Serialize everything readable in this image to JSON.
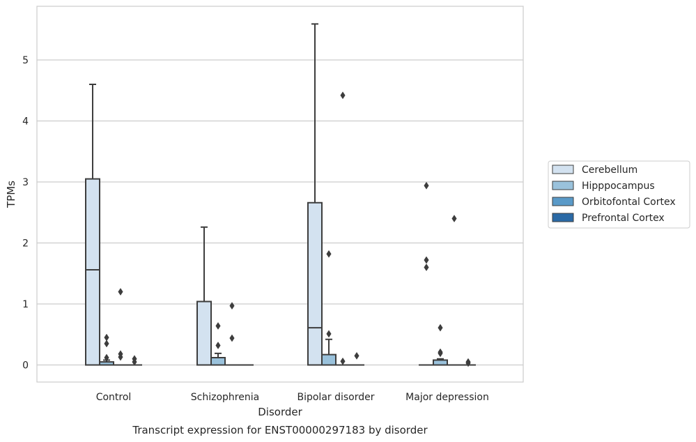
{
  "chart_data": {
    "type": "box",
    "xlabel": "Disorder",
    "ylabel": "TPMs",
    "caption": "Transcript expression for ENST00000297183 by disorder",
    "categories": [
      "Control",
      "Schizophrenia",
      "Bipolar disorder",
      "Major depression"
    ],
    "ylim": [
      -0.28,
      5.88
    ],
    "yticks": [
      0,
      1,
      2,
      3,
      4,
      5
    ],
    "grid": true,
    "legend_position": "right",
    "series": [
      {
        "name": "Cerebellum",
        "color": "#d3e2f0",
        "boxes": [
          {
            "min": 0,
            "q1": 0,
            "median": 1.56,
            "q3": 3.05,
            "max": 4.6,
            "outliers": []
          },
          {
            "min": 0,
            "q1": 0,
            "median": 0,
            "q3": 1.04,
            "max": 2.26,
            "outliers": []
          },
          {
            "min": 0,
            "q1": 0,
            "median": 0.61,
            "q3": 2.66,
            "max": 5.59,
            "outliers": []
          },
          {
            "min": 0,
            "q1": 0,
            "median": 0,
            "q3": 0,
            "max": 0,
            "outliers": [
              2.94,
              1.72,
              1.6
            ]
          }
        ]
      },
      {
        "name": "Hipppocampus",
        "color": "#9ac2dc",
        "boxes": [
          {
            "min": 0,
            "q1": 0,
            "median": 0,
            "q3": 0.05,
            "max": 0.08,
            "outliers": [
              0.45,
              0.35,
              0.12
            ]
          },
          {
            "min": 0,
            "q1": 0,
            "median": 0,
            "q3": 0.12,
            "max": 0.19,
            "outliers": [
              0.64,
              0.32
            ]
          },
          {
            "min": 0,
            "q1": 0,
            "median": 0,
            "q3": 0.17,
            "max": 0.42,
            "outliers": [
              1.82,
              0.51
            ]
          },
          {
            "min": 0,
            "q1": 0,
            "median": 0,
            "q3": 0.08,
            "max": 0.1,
            "outliers": [
              0.61,
              0.21,
              0.19
            ]
          }
        ]
      },
      {
        "name": "Orbitofontal Cortex",
        "color": "#5a9ac8",
        "boxes": [
          {
            "min": 0,
            "q1": 0,
            "median": 0,
            "q3": 0,
            "max": 0,
            "outliers": [
              1.2,
              0.18,
              0.13
            ]
          },
          {
            "min": 0,
            "q1": 0,
            "median": 0,
            "q3": 0,
            "max": 0,
            "outliers": [
              0.97,
              0.44
            ]
          },
          {
            "min": 0,
            "q1": 0,
            "median": 0,
            "q3": 0,
            "max": 0,
            "outliers": [
              4.42,
              0.06
            ]
          },
          {
            "min": 0,
            "q1": 0,
            "median": 0,
            "q3": 0,
            "max": 0,
            "outliers": [
              2.4
            ]
          }
        ]
      },
      {
        "name": "Prefrontal Cortex",
        "color": "#2b6aa6",
        "boxes": [
          {
            "min": 0,
            "q1": 0,
            "median": 0,
            "q3": 0,
            "max": 0,
            "outliers": [
              0.1,
              0.05
            ]
          },
          {
            "min": 0,
            "q1": 0,
            "median": 0,
            "q3": 0,
            "max": 0,
            "outliers": []
          },
          {
            "min": 0,
            "q1": 0,
            "median": 0,
            "q3": 0,
            "max": 0,
            "outliers": [
              0.15
            ]
          },
          {
            "min": 0,
            "q1": 0,
            "median": 0,
            "q3": 0,
            "max": 0,
            "outliers": [
              0.05,
              0.03
            ]
          }
        ]
      }
    ]
  }
}
